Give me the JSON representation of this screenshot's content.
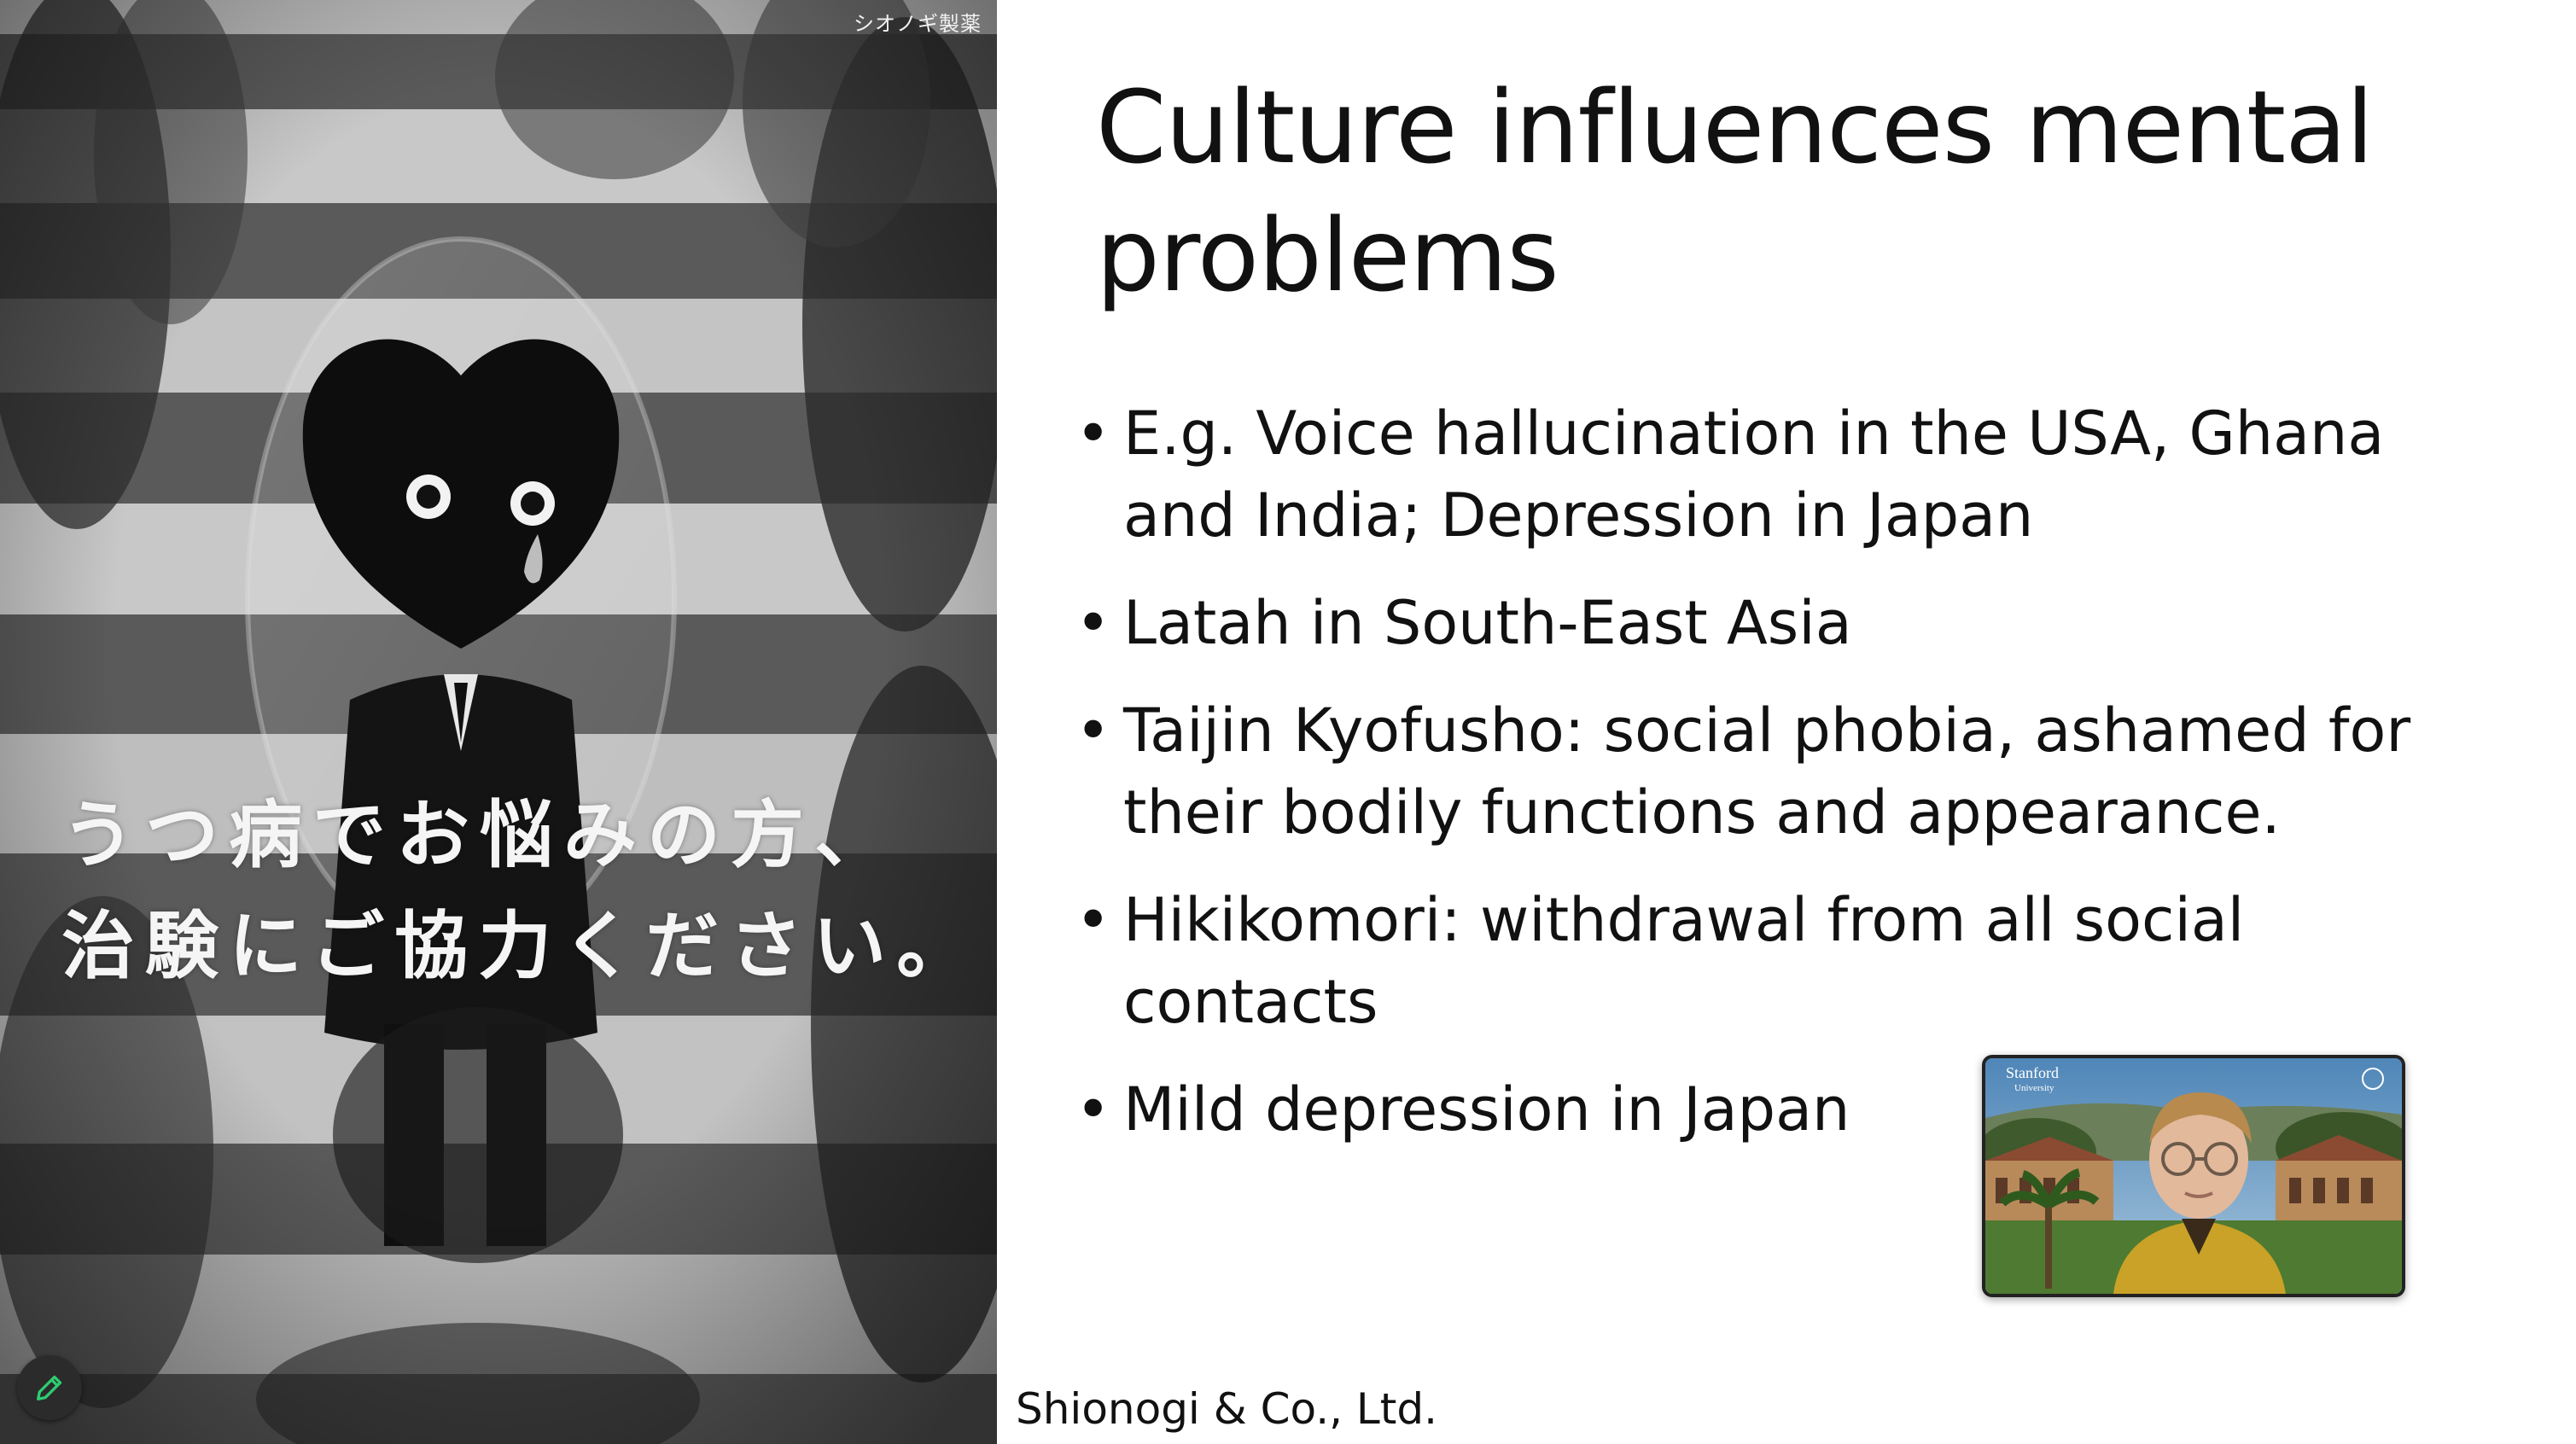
{
  "slide": {
    "title": "Culture influences mental problems",
    "bullets": [
      "E.g. Voice hallucination in the USA, Ghana and India; Depression in Japan",
      "Latah in South-East Asia",
      "Taijin Kyofusho: social phobia, ashamed for their bodily functions and appearance.",
      "Hikikomori: withdrawal from all social contacts",
      "Mild depression in Japan"
    ],
    "bullet_glyph": "•",
    "credit": "Shionogi & Co., Ltd."
  },
  "poster": {
    "brand": "シオノギ製薬",
    "line1": "うつ病でお悩みの方、",
    "line2": "治験にご協力ください。"
  },
  "webcam": {
    "logo_main": "Stanford",
    "logo_sub": "University"
  },
  "icons": {
    "annotate": "pencil-icon"
  },
  "colors": {
    "annotate_accent": "#2ecc71",
    "text": "#111111",
    "background": "#ffffff"
  }
}
